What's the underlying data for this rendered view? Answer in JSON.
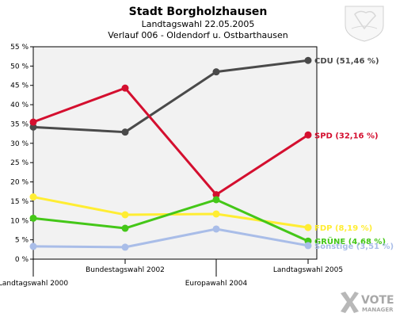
{
  "header": {
    "title": "Stadt Borgholzhausen",
    "subtitle1": "Landtagswahl 22.05.2005",
    "subtitle2": "Verlauf 006 - Oldendorf u. Ostbarthausen"
  },
  "logo": {
    "text": "VOTE",
    "subtext": "MANAGER"
  },
  "chart_data": {
    "type": "line",
    "categories": [
      "Landtagswahl 2000",
      "Bundestagswahl 2002",
      "Europawahl 2004",
      "Landtagswahl 2005"
    ],
    "ylim": [
      0,
      55
    ],
    "yticks": [
      "0 %",
      "5 %",
      "10 %",
      "15 %",
      "20 %",
      "25 %",
      "30 %",
      "35 %",
      "40 %",
      "45 %",
      "50 %",
      "55 %"
    ],
    "grid": false,
    "series": [
      {
        "name": "CDU",
        "label": "CDU (51,46 %)",
        "color": "#4a4a4a",
        "values": [
          34.2,
          32.9,
          48.5,
          51.46
        ]
      },
      {
        "name": "SPD",
        "label": "SPD (32,16 %)",
        "color": "#d40f2f",
        "values": [
          35.5,
          44.3,
          16.7,
          32.16
        ]
      },
      {
        "name": "FDP",
        "label": "FDP (8,19 %)",
        "color": "#ffed33",
        "values": [
          16.1,
          11.5,
          11.7,
          8.19
        ]
      },
      {
        "name": "GRÜNE",
        "label": "GRÜNE (4,68 %)",
        "color": "#44c718",
        "values": [
          10.6,
          8.0,
          15.4,
          4.68
        ]
      },
      {
        "name": "Sonstige",
        "label": "Sonstige (3,51 %)",
        "color": "#a9bde8",
        "values": [
          3.3,
          3.1,
          7.8,
          3.51
        ]
      }
    ]
  }
}
